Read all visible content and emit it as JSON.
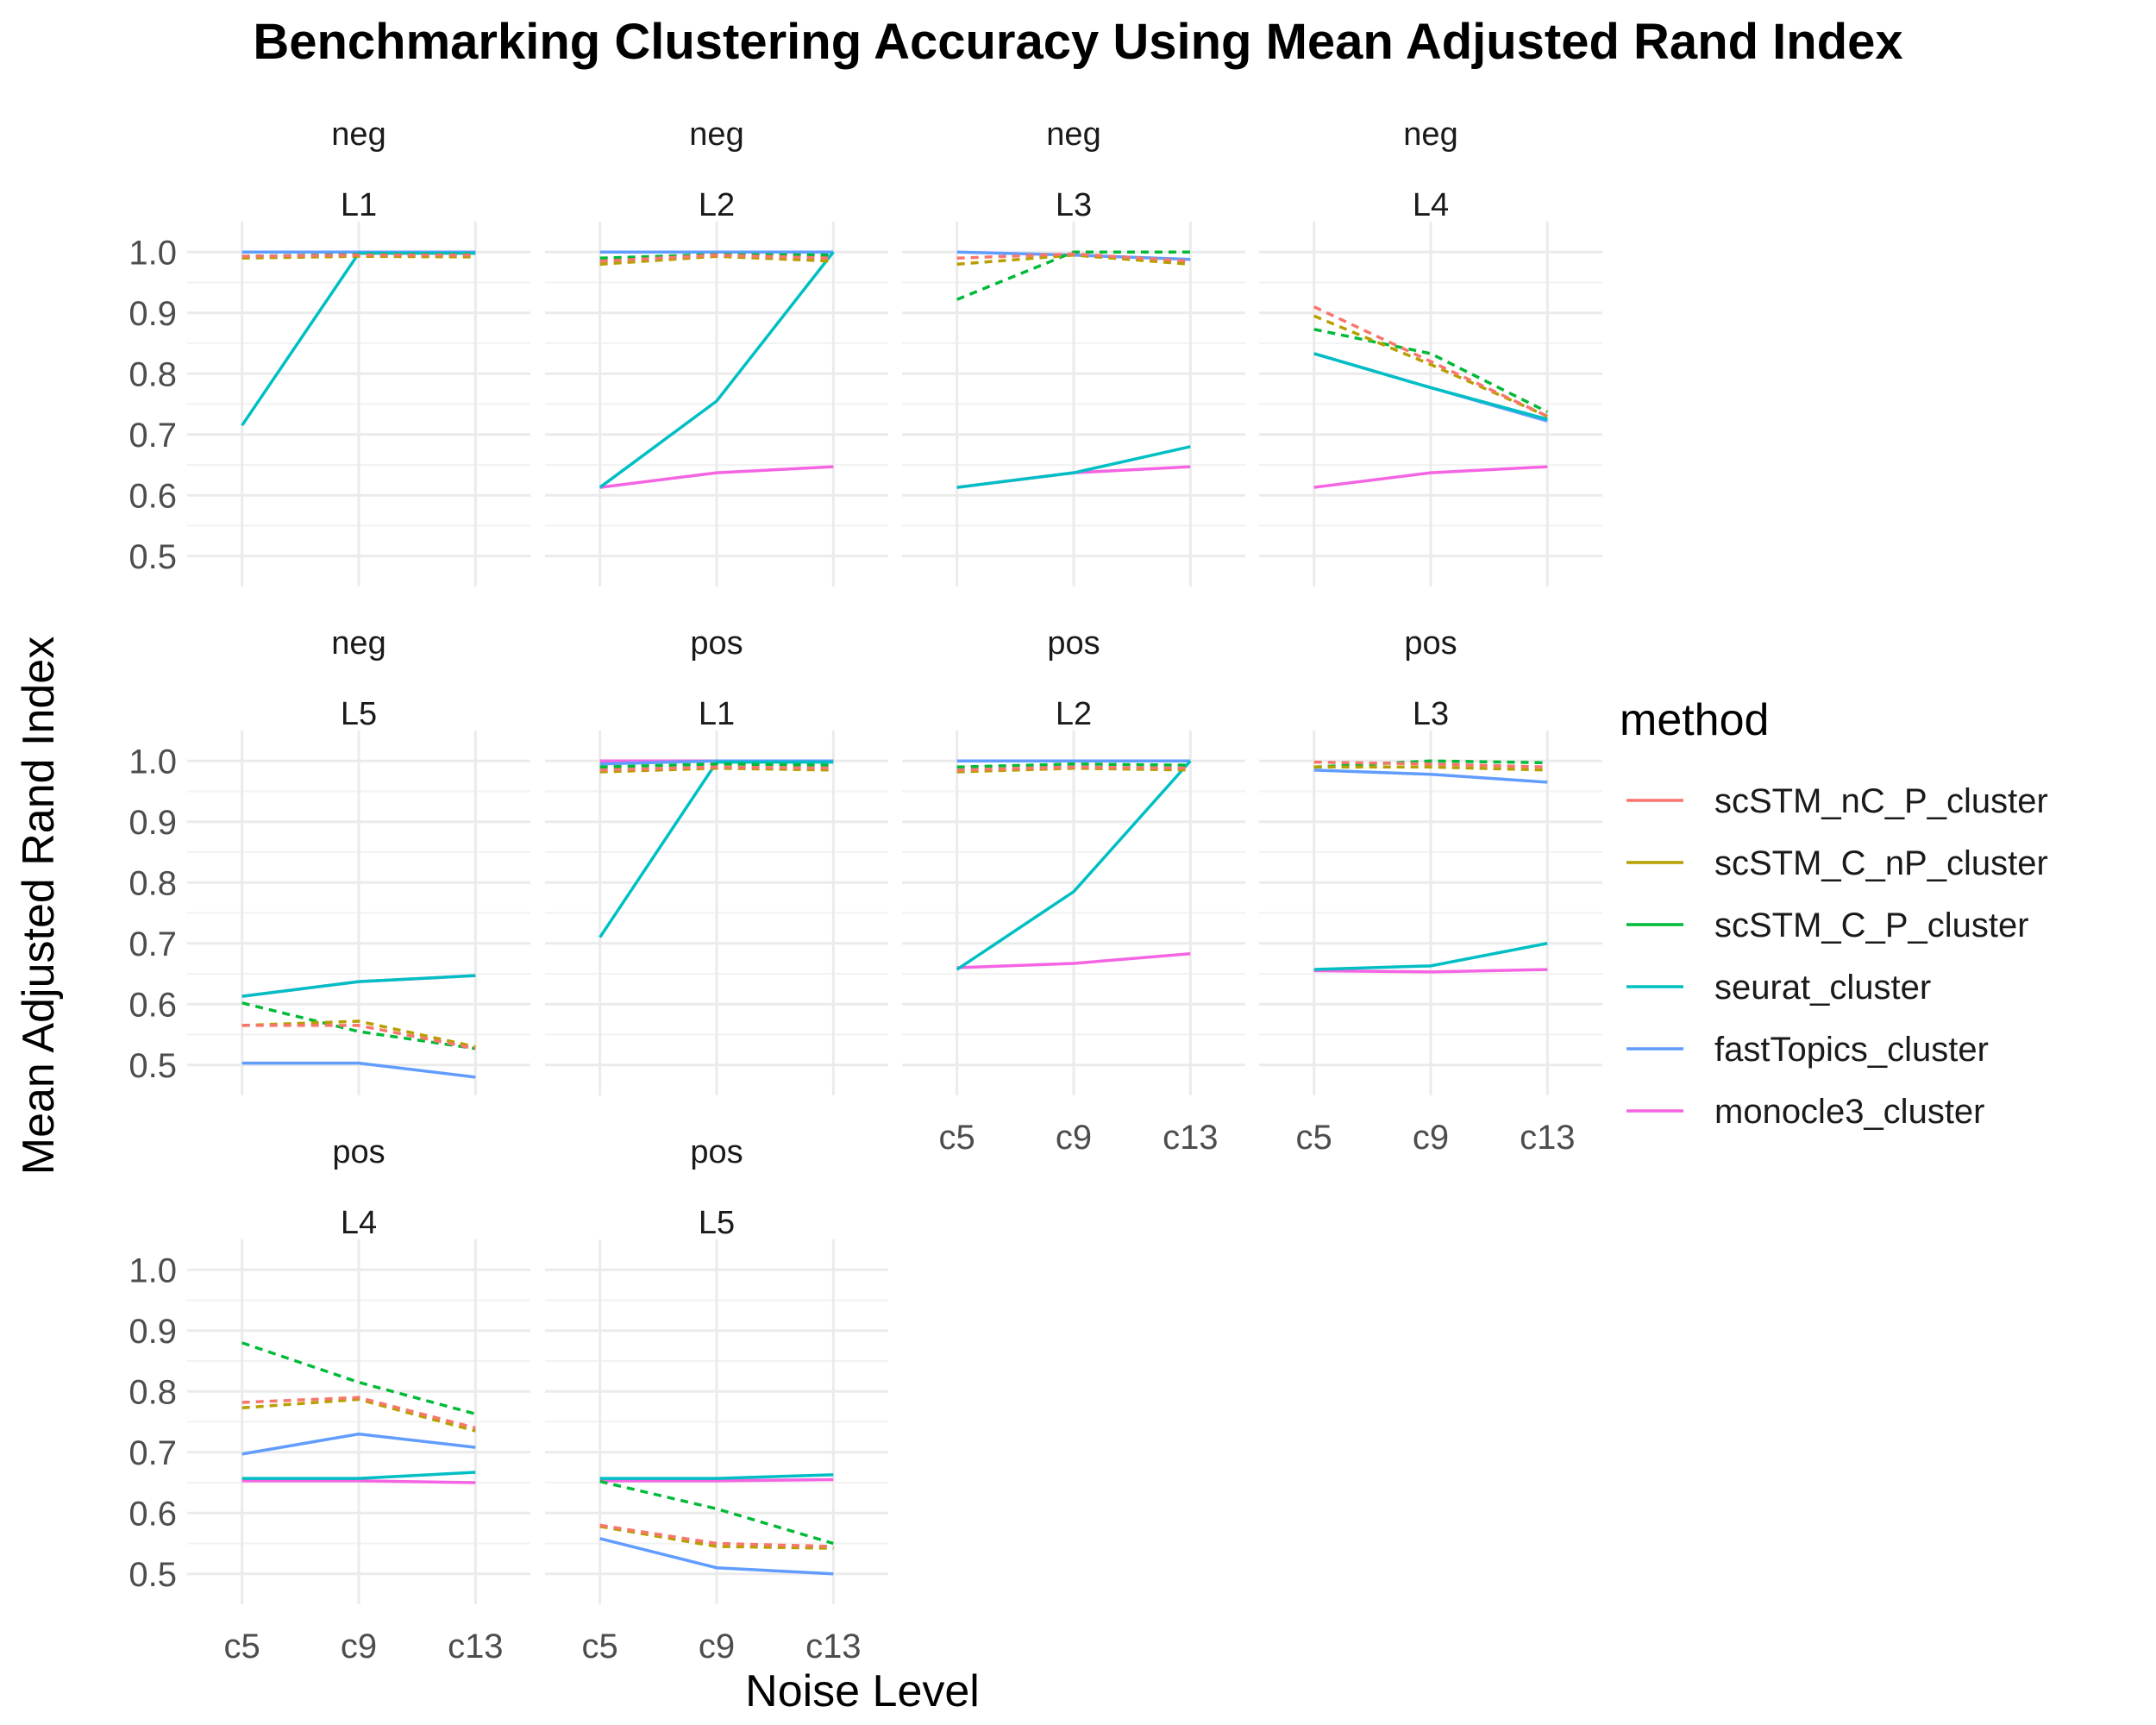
{
  "chart_data": {
    "type": "line",
    "title": "Benchmarking Clustering Accuracy Using Mean Adjusted Rand Index",
    "xlabel": "Noise Level",
    "ylabel": "Mean Adjusted Rand Index",
    "x_categories": [
      "c5",
      "c9",
      "c13"
    ],
    "ylim": [
      0.45,
      1.05
    ],
    "yticks": [
      0.5,
      0.6,
      0.7,
      0.8,
      0.9,
      1.0
    ],
    "grid": true,
    "legend": {
      "title": "method",
      "placement": "right",
      "entries": [
        {
          "name": "scSTM_nC_P_cluster",
          "color": "#F8766D"
        },
        {
          "name": "scSTM_C_nP_cluster",
          "color": "#B79F00"
        },
        {
          "name": "scSTM_C_P_cluster",
          "color": "#00BA38"
        },
        {
          "name": "seurat_cluster",
          "color": "#00BFC4"
        },
        {
          "name": "fastTopics_cluster",
          "color": "#619CFF"
        },
        {
          "name": "monocle3_cluster",
          "color": "#F564E3"
        }
      ]
    },
    "dashed_methods": [
      "scSTM_nC_P_cluster",
      "scSTM_C_nP_cluster",
      "scSTM_C_P_cluster"
    ],
    "panels": [
      {
        "strip1": "neg",
        "strip2": "L1",
        "series": {
          "scSTM_nC_P_cluster": [
            0.993,
            0.995,
            0.995
          ],
          "scSTM_C_nP_cluster": [
            0.99,
            0.993,
            0.992
          ],
          "scSTM_C_P_cluster": [
            0.993,
            0.996,
            0.996
          ],
          "seurat_cluster": [
            0.715,
            0.998,
            0.998
          ],
          "fastTopics_cluster": [
            1.0,
            1.0,
            1.0
          ],
          "monocle3_cluster": [
            1.0,
            1.0,
            1.0
          ]
        }
      },
      {
        "strip1": "neg",
        "strip2": "L2",
        "series": {
          "scSTM_nC_P_cluster": [
            0.985,
            0.995,
            0.99
          ],
          "scSTM_C_nP_cluster": [
            0.98,
            0.993,
            0.985
          ],
          "scSTM_C_P_cluster": [
            0.99,
            0.996,
            0.995
          ],
          "seurat_cluster": [
            0.613,
            0.755,
            1.0
          ],
          "fastTopics_cluster": [
            1.0,
            1.0,
            1.0
          ],
          "monocle3_cluster": [
            0.613,
            0.637,
            0.647
          ]
        }
      },
      {
        "strip1": "neg",
        "strip2": "L3",
        "series": {
          "scSTM_nC_P_cluster": [
            0.99,
            0.997,
            0.985
          ],
          "scSTM_C_nP_cluster": [
            0.98,
            0.995,
            0.98
          ],
          "scSTM_C_P_cluster": [
            0.922,
            1.0,
            1.0
          ],
          "seurat_cluster": [
            0.613,
            0.637,
            0.68
          ],
          "fastTopics_cluster": [
            1.0,
            0.995,
            0.988
          ],
          "monocle3_cluster": [
            0.613,
            0.637,
            0.647
          ]
        }
      },
      {
        "strip1": "neg",
        "strip2": "L4",
        "series": {
          "scSTM_nC_P_cluster": [
            0.91,
            0.82,
            0.73
          ],
          "scSTM_C_nP_cluster": [
            0.895,
            0.815,
            0.73
          ],
          "scSTM_C_P_cluster": [
            0.873,
            0.833,
            0.737
          ],
          "seurat_cluster": [
            0.833,
            0.777,
            0.725
          ],
          "fastTopics_cluster": [
            0.833,
            0.777,
            0.722
          ],
          "monocle3_cluster": [
            0.613,
            0.637,
            0.647
          ]
        }
      },
      {
        "strip1": "neg",
        "strip2": "L5",
        "series": {
          "scSTM_nC_P_cluster": [
            0.565,
            0.565,
            0.527
          ],
          "scSTM_C_nP_cluster": [
            0.565,
            0.572,
            0.53
          ],
          "scSTM_C_P_cluster": [
            0.602,
            0.555,
            0.527
          ],
          "seurat_cluster": [
            0.613,
            0.637,
            0.647
          ],
          "fastTopics_cluster": [
            0.503,
            0.503,
            0.48
          ],
          "monocle3_cluster": [
            0.613,
            0.637,
            0.647
          ]
        }
      },
      {
        "strip1": "pos",
        "strip2": "L1",
        "series": {
          "scSTM_nC_P_cluster": [
            0.985,
            0.99,
            0.988
          ],
          "scSTM_C_nP_cluster": [
            0.982,
            0.988,
            0.985
          ],
          "scSTM_C_P_cluster": [
            0.99,
            0.995,
            0.993
          ],
          "seurat_cluster": [
            0.71,
            0.998,
            0.998
          ],
          "fastTopics_cluster": [
            0.995,
            1.0,
            1.0
          ],
          "monocle3_cluster": [
            1.0,
            1.0,
            1.0
          ]
        }
      },
      {
        "strip1": "pos",
        "strip2": "L2",
        "series": {
          "scSTM_nC_P_cluster": [
            0.985,
            0.99,
            0.988
          ],
          "scSTM_C_nP_cluster": [
            0.982,
            0.988,
            0.985
          ],
          "scSTM_C_P_cluster": [
            0.99,
            0.995,
            0.993
          ],
          "seurat_cluster": [
            0.657,
            0.785,
            1.0
          ],
          "fastTopics_cluster": [
            1.0,
            1.0,
            1.0
          ],
          "monocle3_cluster": [
            0.66,
            0.667,
            0.683
          ]
        }
      },
      {
        "strip1": "pos",
        "strip2": "L3",
        "series": {
          "scSTM_nC_P_cluster": [
            0.998,
            0.995,
            0.99
          ],
          "scSTM_C_nP_cluster": [
            0.99,
            0.99,
            0.985
          ],
          "scSTM_C_P_cluster": [
            0.99,
            1.0,
            0.997
          ],
          "seurat_cluster": [
            0.657,
            0.663,
            0.7
          ],
          "fastTopics_cluster": [
            0.985,
            0.978,
            0.965
          ],
          "monocle3_cluster": [
            0.655,
            0.653,
            0.657
          ]
        }
      },
      {
        "strip1": "pos",
        "strip2": "L4",
        "series": {
          "scSTM_nC_P_cluster": [
            0.782,
            0.79,
            0.74
          ],
          "scSTM_C_nP_cluster": [
            0.773,
            0.787,
            0.735
          ],
          "scSTM_C_P_cluster": [
            0.88,
            0.815,
            0.763
          ],
          "seurat_cluster": [
            0.657,
            0.657,
            0.667
          ],
          "fastTopics_cluster": [
            0.697,
            0.73,
            0.708
          ],
          "monocle3_cluster": [
            0.653,
            0.653,
            0.65
          ]
        }
      },
      {
        "strip1": "pos",
        "strip2": "L5",
        "series": {
          "scSTM_nC_P_cluster": [
            0.58,
            0.55,
            0.545
          ],
          "scSTM_C_nP_cluster": [
            0.578,
            0.545,
            0.542
          ],
          "scSTM_C_P_cluster": [
            0.652,
            0.607,
            0.55
          ],
          "seurat_cluster": [
            0.657,
            0.657,
            0.663
          ],
          "fastTopics_cluster": [
            0.558,
            0.51,
            0.5
          ],
          "monocle3_cluster": [
            0.653,
            0.653,
            0.655
          ]
        }
      }
    ]
  }
}
